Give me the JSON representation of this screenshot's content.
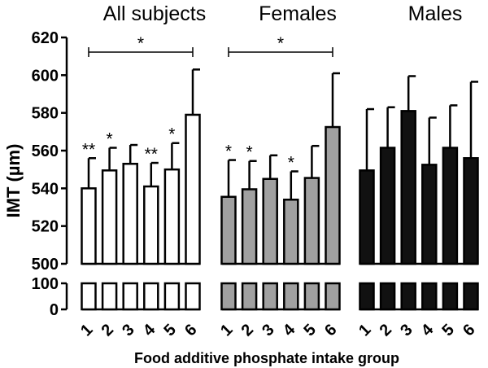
{
  "chart_data": {
    "type": "bar",
    "ylabel": "IMT (µm)",
    "xlabel": "Food additive phosphate intake group",
    "y_axis": {
      "upper_segment_range": [
        500,
        620
      ],
      "upper_ticks": [
        500,
        520,
        540,
        560,
        580,
        600,
        620
      ],
      "lower_segment_range": [
        0,
        100
      ],
      "lower_ticks": [
        0,
        100
      ],
      "axis_break": true
    },
    "groups": [
      {
        "name": "All subjects",
        "fill": "#ffffff",
        "categories": [
          "1",
          "2",
          "3",
          "4",
          "5",
          "6"
        ],
        "values": [
          540,
          549.5,
          553,
          541,
          550,
          579
        ],
        "errors": [
          16,
          12,
          10,
          12.5,
          14,
          24
        ],
        "annotations": [
          "**",
          "*",
          "",
          "**",
          "*",
          ""
        ],
        "bracket": {
          "from": "1",
          "to": "6",
          "label": "*"
        }
      },
      {
        "name": "Females",
        "fill": "#a0a0a0",
        "categories": [
          "1",
          "2",
          "3",
          "4",
          "5",
          "6"
        ],
        "values": [
          535.5,
          539.5,
          545,
          534,
          545.5,
          572.5
        ],
        "errors": [
          19.5,
          15,
          12.5,
          15,
          17,
          28.5
        ],
        "annotations": [
          "*",
          "*",
          "",
          "*",
          "",
          ""
        ],
        "bracket": {
          "from": "1",
          "to": "6",
          "label": "*"
        }
      },
      {
        "name": "Males",
        "fill": "#111111",
        "categories": [
          "1",
          "2",
          "3",
          "4",
          "5",
          "6"
        ],
        "values": [
          549.5,
          561.5,
          581,
          552.5,
          561.5,
          556
        ],
        "errors": [
          32.5,
          21.5,
          18.5,
          25,
          22.5,
          40.5
        ],
        "annotations": [
          "",
          "",
          "",
          "",
          "",
          ""
        ],
        "bracket": null
      }
    ]
  }
}
